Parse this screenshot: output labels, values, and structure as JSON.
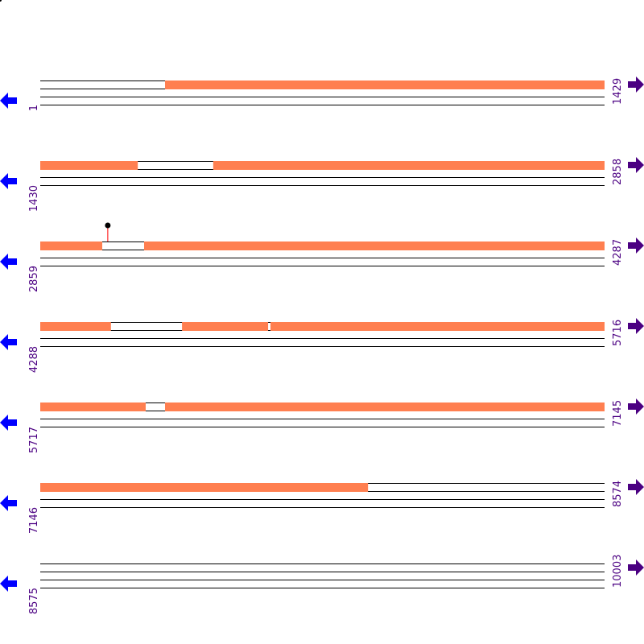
{
  "colors": {
    "feature": "#ff7f50",
    "left_arrow": "#0000ff",
    "right_arrow": "#4b0082",
    "label": "#4b0082",
    "marker_stem": "#ff0000",
    "line": "#000000"
  },
  "bp_per_row": 1429,
  "rows": [
    {
      "start": "1",
      "end": "1429",
      "features": [
        [
          317,
          1429
        ]
      ]
    },
    {
      "start": "1430",
      "end": "2858",
      "features": [
        [
          1430,
          1676
        ],
        [
          1868,
          2858
        ]
      ]
    },
    {
      "start": "2859",
      "end": "4287",
      "features": [
        [
          2859,
          3015
        ],
        [
          3122,
          4287
        ]
      ],
      "markers": [
        3030
      ]
    },
    {
      "start": "4288",
      "end": "5716",
      "features": [
        [
          4288,
          4466
        ],
        [
          4647,
          4864
        ],
        [
          4871,
          5716
        ]
      ]
    },
    {
      "start": "5717",
      "end": "7145",
      "features": [
        [
          5717,
          5983
        ],
        [
          6033,
          7145
        ]
      ]
    },
    {
      "start": "7146",
      "end": "8574",
      "features": [
        [
          7146,
          7975
        ]
      ]
    },
    {
      "start": "8575",
      "end": "10003",
      "features": []
    }
  ],
  "icons": {
    "left": "arrow-left-icon",
    "right": "arrow-right-icon",
    "marker": "lollipop-marker-icon"
  }
}
